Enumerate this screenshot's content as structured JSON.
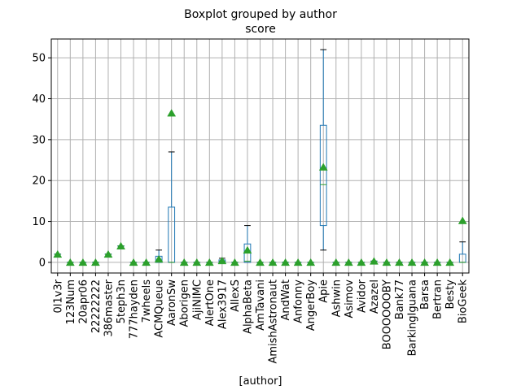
{
  "chart_data": {
    "type": "box",
    "title": "Boxplot grouped by author",
    "subtitle": "score",
    "xlabel": "[author]",
    "ylabel": "",
    "ylim": [
      -2.6,
      54.6
    ],
    "yticks": [
      0,
      10,
      20,
      30,
      40,
      50
    ],
    "grid": true,
    "colors": {
      "box": "#1f77b4",
      "median": "#2ca02c",
      "mean": "#2ca02c",
      "grid": "#b0b0b0"
    },
    "categories": [
      "0l1v3r",
      "123Num",
      "20apr06",
      "22222222",
      "386master",
      "5teph3n",
      "777hayden",
      "7wheels",
      "ACMQueue",
      "AaronSw",
      "Aborigen",
      "AjiNIMC",
      "AlertOne",
      "Alex3917",
      "AllexS",
      "AlphaBeta",
      "AmTavani",
      "AmishAstronaut",
      "AndWat",
      "Anfonny",
      "AngerBoy",
      "Apie",
      "Ashwin",
      "Asimov",
      "Avidor",
      "Azazel",
      "BOOOOOOBY",
      "Bank77",
      "BarkingIguana",
      "Barsa",
      "Bertran",
      "Besty",
      "BioGeek"
    ],
    "boxes": [
      {
        "whislo": 2,
        "q1": 2,
        "med": 2,
        "q3": 2,
        "whishi": 2,
        "mean": 2
      },
      {
        "whislo": 0,
        "q1": 0,
        "med": 0,
        "q3": 0,
        "whishi": 0,
        "mean": 0
      },
      {
        "whislo": 0,
        "q1": 0,
        "med": 0,
        "q3": 0,
        "whishi": 0,
        "mean": 0
      },
      {
        "whislo": 0,
        "q1": 0,
        "med": 0,
        "q3": 0,
        "whishi": 0,
        "mean": 0
      },
      {
        "whislo": 2,
        "q1": 2,
        "med": 2,
        "q3": 2,
        "whishi": 2,
        "mean": 2
      },
      {
        "whislo": 4,
        "q1": 4,
        "med": 4,
        "q3": 4,
        "whishi": 4,
        "mean": 4
      },
      {
        "whislo": 0,
        "q1": 0,
        "med": 0,
        "q3": 0,
        "whishi": 0,
        "mean": 0
      },
      {
        "whislo": 0,
        "q1": 0,
        "med": 0,
        "q3": 0,
        "whishi": 0,
        "mean": 0
      },
      {
        "whislo": 0,
        "q1": 0,
        "med": 0.3,
        "q3": 1.5,
        "whishi": 3,
        "mean": 0.8
      },
      {
        "whislo": 0,
        "q1": 0,
        "med": 0,
        "q3": 13.5,
        "whishi": 27,
        "mean": 36.5
      },
      {
        "whislo": 0,
        "q1": 0,
        "med": 0,
        "q3": 0,
        "whishi": 0,
        "mean": 0
      },
      {
        "whislo": 0,
        "q1": 0,
        "med": 0,
        "q3": 0,
        "whishi": 0,
        "mean": 0
      },
      {
        "whislo": 0,
        "q1": 0,
        "med": 0,
        "q3": 0,
        "whishi": 0,
        "mean": 0
      },
      {
        "whislo": 0,
        "q1": 0,
        "med": 0.3,
        "q3": 0.6,
        "whishi": 1,
        "mean": 0.4
      },
      {
        "whislo": 0,
        "q1": 0,
        "med": 0,
        "q3": 0,
        "whishi": 0,
        "mean": 0
      },
      {
        "whislo": 0,
        "q1": 0,
        "med": 0.3,
        "q3": 4.5,
        "whishi": 9,
        "mean": 3
      },
      {
        "whislo": 0,
        "q1": 0,
        "med": 0,
        "q3": 0,
        "whishi": 0,
        "mean": 0
      },
      {
        "whislo": 0,
        "q1": 0,
        "med": 0,
        "q3": 0,
        "whishi": 0,
        "mean": 0
      },
      {
        "whislo": 0,
        "q1": 0,
        "med": 0,
        "q3": 0,
        "whishi": 0,
        "mean": 0
      },
      {
        "whislo": 0,
        "q1": 0,
        "med": 0,
        "q3": 0,
        "whishi": 0,
        "mean": 0
      },
      {
        "whislo": 0,
        "q1": 0,
        "med": 0,
        "q3": 0,
        "whishi": 0,
        "mean": 0
      },
      {
        "whislo": 3,
        "q1": 9,
        "med": 19,
        "q3": 33.5,
        "whishi": 52,
        "mean": 23.3
      },
      {
        "whislo": 0,
        "q1": 0,
        "med": 0,
        "q3": 0,
        "whishi": 0,
        "mean": 0
      },
      {
        "whislo": 0,
        "q1": 0,
        "med": 0,
        "q3": 0,
        "whishi": 0,
        "mean": 0
      },
      {
        "whislo": 0,
        "q1": 0,
        "med": 0,
        "q3": 0,
        "whishi": 0,
        "mean": 0
      },
      {
        "whislo": 0.3,
        "q1": 0.3,
        "med": 0.3,
        "q3": 0.3,
        "whishi": 0.3,
        "mean": 0.3
      },
      {
        "whislo": 0,
        "q1": 0,
        "med": 0,
        "q3": 0,
        "whishi": 0,
        "mean": 0
      },
      {
        "whislo": 0,
        "q1": 0,
        "med": 0,
        "q3": 0,
        "whishi": 0,
        "mean": 0
      },
      {
        "whislo": 0,
        "q1": 0,
        "med": 0,
        "q3": 0,
        "whishi": 0,
        "mean": 0
      },
      {
        "whislo": 0,
        "q1": 0,
        "med": 0,
        "q3": 0,
        "whishi": 0,
        "mean": 0
      },
      {
        "whislo": 0,
        "q1": 0,
        "med": 0,
        "q3": 0,
        "whishi": 0,
        "mean": 0
      },
      {
        "whislo": 0,
        "q1": 0,
        "med": 0,
        "q3": 0,
        "whishi": 0,
        "mean": 0
      },
      {
        "whislo": 0,
        "q1": 0,
        "med": 0,
        "q3": 2,
        "whishi": 5,
        "mean": 10.2
      }
    ]
  }
}
